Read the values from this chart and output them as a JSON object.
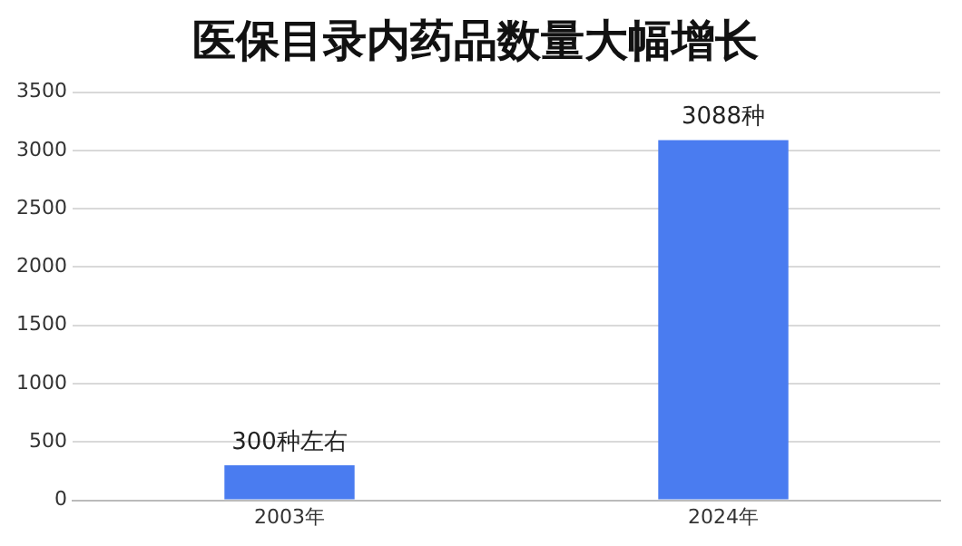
{
  "chart_data": {
    "type": "bar",
    "title": "医保目录内药品数量大幅增长",
    "categories": [
      "2003年",
      "2024年"
    ],
    "values": [
      300,
      3088
    ],
    "value_labels": [
      "300种左右",
      "3088种"
    ],
    "color": "#4a7cf0",
    "ylim": [
      0,
      3500
    ],
    "yticks": [
      0,
      500,
      1000,
      1500,
      2000,
      2500,
      3000,
      3500
    ],
    "grid": "y",
    "legend": false
  }
}
